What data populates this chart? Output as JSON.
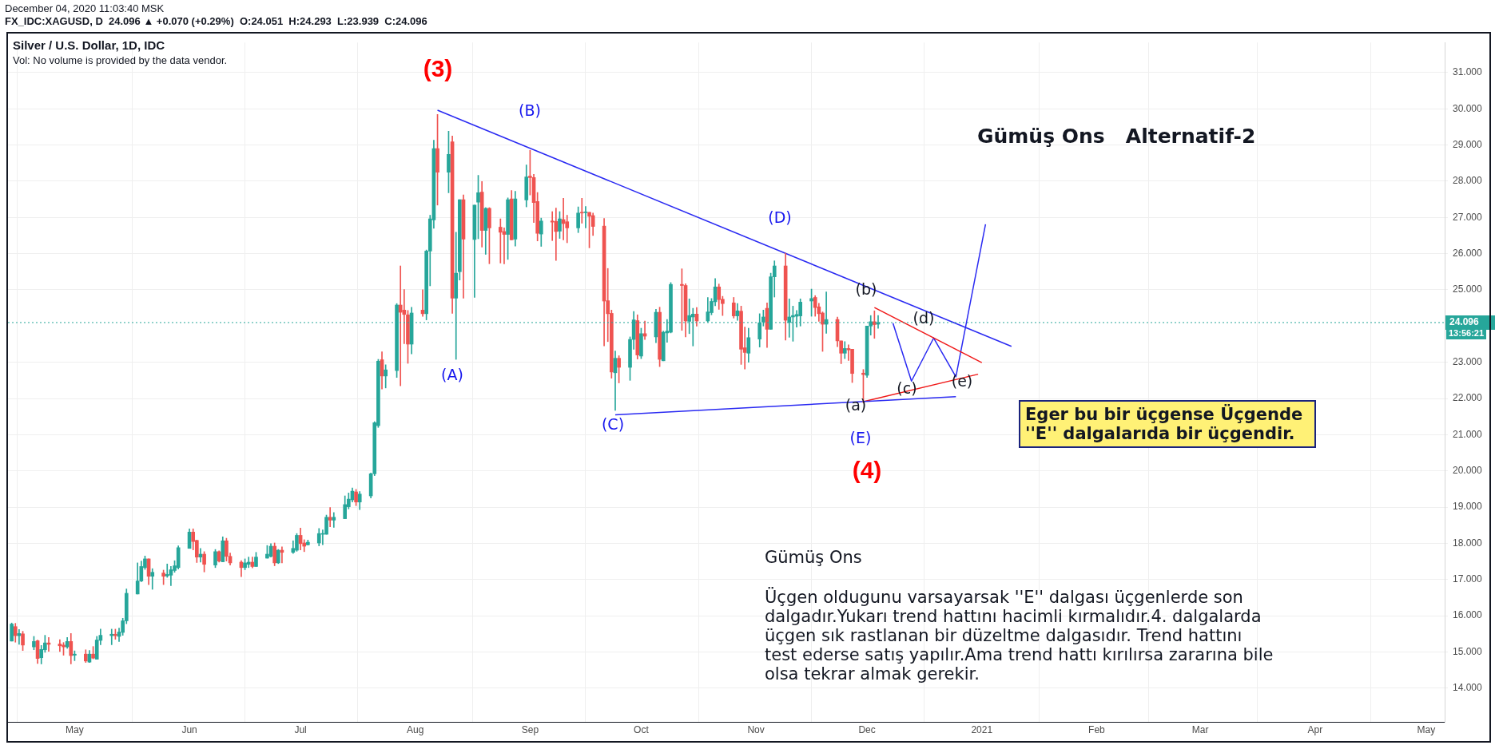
{
  "chart_data": {
    "type": "candlestick",
    "title": "Silver / U.S. Dollar, 1D, IDC",
    "subtitle": "Vol: No volume is provided by the data vendor.",
    "colors": [
      "#26a69a",
      "#ef5350",
      "#26a69a",
      "#ef5350",
      "#26a69a",
      "#ef5350",
      "#26a69a",
      "#26a69a",
      "#ef5350",
      "#ef5350",
      "#ef5350",
      "#26a69a",
      "#ef5350",
      "#26a69a",
      "#ef5350",
      "#26a69a",
      "#ef5350",
      "#26a69a",
      "#26a69a",
      "#26a69a",
      "#ef5350",
      "#26a69a",
      "#26a69a",
      "#26a69a",
      "#26a69a",
      "#26a69a",
      "#26a69a",
      "#ef5350",
      "#26a69a",
      "#ef5350",
      "#26a69a",
      "#26a69a",
      "#26a69a",
      "#26a69a",
      "#26a69a",
      "#ef5350",
      "#ef5350",
      "#26a69a",
      "#ef5350",
      "#26a69a",
      "#ef5350",
      "#26a69a",
      "#ef5350",
      "#ef5350",
      "#ef5350",
      "#26a69a",
      "#26a69a",
      "#ef5350",
      "#26a69a",
      "#26a69a",
      "#26a69a",
      "#ef5350",
      "#26a69a",
      "#ef5350",
      "#26a69a",
      "#26a69a",
      "#ef5350",
      "#ef5350",
      "#26a69a",
      "#26a69a",
      "#26a69a",
      "#26a69a",
      "#ef5350",
      "#26a69a",
      "#26a69a",
      "#26a69a",
      "#26a69a",
      "#ef5350",
      "#26a69a",
      "#26a69a",
      "#26a69a",
      "#26a69a",
      "#ef5350",
      "#26a69a",
      "#26a69a",
      "#ef5350",
      "#ef5350",
      "#ef5350",
      "#26a69a",
      "#ef5350",
      "#26a69a",
      "#26a69a",
      "#26a69a",
      "#ef5350",
      "#26a69a",
      "#ef5350",
      "#26a69a",
      "#26a69a",
      "#ef5350",
      "#26a69a",
      "#26a69a",
      "#ef5350",
      "#26a69a",
      "#ef5350",
      "#ef5350",
      "#ef5350",
      "#26a69a",
      "#ef5350",
      "#26a69a",
      "#26a69a",
      "#ef5350",
      "#ef5350",
      "#ef5350",
      "#26a69a",
      "#ef5350",
      "#ef5350",
      "#26a69a",
      "#ef5350",
      "#ef5350",
      "#26a69a",
      "#ef5350",
      "#26a69a",
      "#ef5350",
      "#ef5350",
      "#ef5350",
      "#ef5350",
      "#ef5350",
      "#26a69a",
      "#ef5350",
      "#26a69a",
      "#26a69a",
      "#ef5350",
      "#26a69a",
      "#ef5350",
      "#26a69a",
      "#ef5350",
      "#26a69a",
      "#26a69a",
      "#26a69a",
      "#ef5350",
      "#ef5350",
      "#26a69a",
      "#26a69a",
      "#ef5350",
      "#26a69a",
      "#26a69a",
      "#26a69a",
      "#ef5350",
      "#ef5350",
      "#ef5350",
      "#26a69a",
      "#ef5350",
      "#ef5350",
      "#26a69a",
      "#26a69a",
      "#26a69a",
      "#ef5350",
      "#26a69a",
      "#26a69a",
      "#ef5350",
      "#26a69a",
      "#26a69a",
      "#26a69a",
      "#26a69a",
      "#26a69a",
      "#ef5350",
      "#ef5350",
      "#ef5350",
      "#26a69a",
      "#ef5350",
      "#ef5350",
      "#26a69a",
      "#ef5350",
      "#ef5350",
      "#ef5350",
      "#26a69a",
      "#26a69a",
      "#ef5350",
      "#26a69a"
    ],
    "x": [
      "2020-04-14",
      "2020-04-15",
      "2020-04-16",
      "2020-04-17",
      "2020-04-20",
      "2020-04-21",
      "2020-04-22",
      "2020-04-23",
      "2020-04-24",
      "2020-04-27",
      "2020-04-28",
      "2020-04-29",
      "2020-04-30",
      "2020-05-01",
      "2020-05-04",
      "2020-05-05",
      "2020-05-06",
      "2020-05-07",
      "2020-05-08",
      "2020-05-11",
      "2020-05-12",
      "2020-05-13",
      "2020-05-14",
      "2020-05-15",
      "2020-05-18",
      "2020-05-19",
      "2020-05-20",
      "2020-05-21",
      "2020-05-22",
      "2020-05-25",
      "2020-05-26",
      "2020-05-27",
      "2020-05-28",
      "2020-05-29",
      "2020-06-01",
      "2020-06-02",
      "2020-06-03",
      "2020-06-04",
      "2020-06-05",
      "2020-06-08",
      "2020-06-09",
      "2020-06-10",
      "2020-06-11",
      "2020-06-12",
      "2020-06-15",
      "2020-06-16",
      "2020-06-17",
      "2020-06-18",
      "2020-06-19",
      "2020-06-22",
      "2020-06-23",
      "2020-06-24",
      "2020-06-25",
      "2020-06-26",
      "2020-06-29",
      "2020-06-30",
      "2020-07-01",
      "2020-07-02",
      "2020-07-03",
      "2020-07-06",
      "2020-07-07",
      "2020-07-08",
      "2020-07-09",
      "2020-07-10",
      "2020-07-13",
      "2020-07-14",
      "2020-07-15",
      "2020-07-16",
      "2020-07-17",
      "2020-07-20",
      "2020-07-21",
      "2020-07-22",
      "2020-07-23",
      "2020-07-24",
      "2020-07-27",
      "2020-07-28",
      "2020-07-29",
      "2020-07-30",
      "2020-07-31",
      "2020-08-03",
      "2020-08-04",
      "2020-08-05",
      "2020-08-06",
      "2020-08-07",
      "2020-08-10",
      "2020-08-11",
      "2020-08-12",
      "2020-08-13",
      "2020-08-14",
      "2020-08-17",
      "2020-08-18",
      "2020-08-19",
      "2020-08-20",
      "2020-08-21",
      "2020-08-24",
      "2020-08-25",
      "2020-08-26",
      "2020-08-27",
      "2020-08-28",
      "2020-08-31",
      "2020-09-01",
      "2020-09-02",
      "2020-09-03",
      "2020-09-04",
      "2020-09-07",
      "2020-09-08",
      "2020-09-09",
      "2020-09-10",
      "2020-09-11",
      "2020-09-14",
      "2020-09-15",
      "2020-09-16",
      "2020-09-17",
      "2020-09-18",
      "2020-09-21",
      "2020-09-22",
      "2020-09-23",
      "2020-09-24",
      "2020-09-25",
      "2020-09-28",
      "2020-09-29",
      "2020-09-30",
      "2020-10-01",
      "2020-10-02",
      "2020-10-05",
      "2020-10-06",
      "2020-10-07",
      "2020-10-08",
      "2020-10-09",
      "2020-10-12",
      "2020-10-13",
      "2020-10-14",
      "2020-10-15",
      "2020-10-16",
      "2020-10-19",
      "2020-10-20",
      "2020-10-21",
      "2020-10-22",
      "2020-10-23",
      "2020-10-26",
      "2020-10-27",
      "2020-10-28",
      "2020-10-29",
      "2020-10-30",
      "2020-11-02",
      "2020-11-03",
      "2020-11-04",
      "2020-11-05",
      "2020-11-06",
      "2020-11-09",
      "2020-11-10",
      "2020-11-11",
      "2020-11-12",
      "2020-11-13",
      "2020-11-16",
      "2020-11-17",
      "2020-11-18",
      "2020-11-19",
      "2020-11-20",
      "2020-11-23",
      "2020-11-24",
      "2020-11-25",
      "2020-11-26",
      "2020-11-27",
      "2020-11-30",
      "2020-12-01",
      "2020-12-02",
      "2020-12-03",
      "2020-12-04"
    ],
    "ohlc": [
      [
        15.3,
        15.8,
        15.3,
        15.77
      ],
      [
        15.7,
        15.79,
        15.27,
        15.45
      ],
      [
        15.45,
        15.62,
        15.21,
        15.51
      ],
      [
        15.5,
        15.57,
        15.04,
        15.19
      ],
      [
        15.14,
        15.43,
        15.06,
        15.29
      ],
      [
        15.31,
        15.33,
        14.68,
        14.82
      ],
      [
        14.84,
        15.18,
        14.67,
        15.07
      ],
      [
        15.06,
        15.46,
        14.99,
        15.25
      ],
      [
        15.25,
        15.4,
        15.02,
        15.21
      ],
      [
        15.22,
        15.34,
        15.01,
        15.17
      ],
      [
        15.19,
        15.26,
        14.91,
        15.14
      ],
      [
        15.14,
        15.4,
        15.1,
        15.29
      ],
      [
        15.29,
        15.51,
        14.67,
        14.9
      ],
      [
        14.91,
        15.03,
        14.76,
        14.94
      ],
      [
        14.94,
        15.06,
        14.71,
        14.75
      ],
      [
        14.72,
        15.04,
        14.71,
        14.94
      ],
      [
        14.94,
        15.15,
        14.81,
        14.83
      ],
      [
        14.8,
        15.43,
        14.8,
        15.33
      ],
      [
        15.32,
        15.63,
        15.2,
        15.46
      ],
      [
        15.45,
        15.63,
        15.2,
        15.49
      ],
      [
        15.49,
        15.63,
        15.35,
        15.45
      ],
      [
        15.43,
        15.66,
        15.29,
        15.55
      ],
      [
        15.54,
        15.93,
        15.46,
        15.86
      ],
      [
        15.86,
        16.74,
        15.78,
        16.62
      ],
      [
        16.6,
        17.46,
        16.6,
        16.96
      ],
      [
        16.96,
        17.51,
        16.94,
        17.36
      ],
      [
        17.33,
        17.65,
        17.28,
        17.57
      ],
      [
        17.57,
        17.57,
        16.86,
        17.09
      ],
      [
        17.09,
        17.3,
        16.73,
        17.2
      ],
      [
        17.18,
        17.26,
        16.86,
        17.09
      ],
      [
        17.1,
        17.43,
        17.06,
        17.14
      ],
      [
        17.12,
        17.36,
        16.83,
        17.27
      ],
      [
        17.25,
        17.52,
        17.2,
        17.38
      ],
      [
        17.33,
        17.93,
        17.29,
        17.88
      ],
      [
        17.86,
        18.4,
        17.86,
        18.31
      ],
      [
        18.31,
        18.4,
        17.82,
        18.05
      ],
      [
        18.08,
        18.09,
        17.47,
        17.62
      ],
      [
        17.62,
        17.86,
        17.48,
        17.7
      ],
      [
        17.7,
        17.77,
        17.21,
        17.42
      ],
      [
        17.4,
        17.83,
        17.33,
        17.77
      ],
      [
        17.77,
        17.79,
        17.48,
        17.51
      ],
      [
        17.49,
        18.18,
        17.49,
        18.07
      ],
      [
        18.07,
        18.14,
        17.51,
        17.64
      ],
      [
        17.64,
        17.73,
        17.4,
        17.46
      ],
      [
        17.48,
        17.52,
        17.08,
        17.33
      ],
      [
        17.33,
        17.57,
        17.27,
        17.46
      ],
      [
        17.42,
        17.62,
        17.33,
        17.48
      ],
      [
        17.48,
        17.62,
        17.32,
        17.36
      ],
      [
        17.36,
        17.75,
        17.36,
        17.62
      ],
      [
        17.59,
        17.94,
        17.59,
        17.7
      ],
      [
        17.64,
        17.99,
        17.62,
        17.92
      ],
      [
        17.92,
        18.01,
        17.38,
        17.46
      ],
      [
        17.46,
        17.83,
        17.44,
        17.81
      ],
      [
        17.81,
        17.9,
        17.46,
        17.75
      ],
      [
        17.75,
        18.07,
        17.72,
        17.86
      ],
      [
        17.81,
        18.27,
        17.78,
        18.22
      ],
      [
        18.22,
        18.42,
        17.82,
        17.99
      ],
      [
        18.01,
        18.1,
        17.77,
        17.92
      ],
      [
        17.96,
        18.09,
        17.95,
        18.03
      ],
      [
        18.01,
        18.41,
        17.93,
        18.27
      ],
      [
        18.25,
        18.37,
        17.96,
        18.27
      ],
      [
        18.25,
        18.78,
        18.25,
        18.72
      ],
      [
        18.72,
        18.99,
        18.46,
        18.64
      ],
      [
        18.64,
        18.85,
        18.44,
        18.72
      ],
      [
        18.68,
        19.31,
        18.68,
        19.07
      ],
      [
        19.01,
        19.39,
        18.95,
        19.22
      ],
      [
        19.2,
        19.53,
        19.14,
        19.44
      ],
      [
        19.42,
        19.49,
        19.04,
        19.14
      ],
      [
        19.14,
        19.43,
        18.93,
        19.36
      ],
      [
        19.31,
        19.94,
        19.25,
        19.92
      ],
      [
        19.92,
        21.36,
        19.87,
        21.33
      ],
      [
        21.25,
        23.08,
        21.2,
        23.03
      ],
      [
        23.07,
        23.29,
        22.26,
        22.62
      ],
      [
        22.62,
        22.93,
        22.29,
        22.79
      ],
      [
        22.77,
        24.62,
        22.58,
        24.58
      ],
      [
        24.58,
        25.66,
        22.35,
        24.38
      ],
      [
        24.44,
        25.01,
        23.51,
        24.32
      ],
      [
        24.31,
        24.43,
        22.97,
        23.5
      ],
      [
        23.5,
        24.52,
        23.23,
        24.36
      ],
      [
        24.44,
        25.0,
        24.27,
        24.34
      ],
      [
        24.34,
        26.1,
        24.17,
        26.07
      ],
      [
        26.07,
        27.06,
        25.11,
        26.96
      ],
      [
        26.93,
        29.13,
        26.7,
        28.9
      ],
      [
        28.9,
        29.84,
        27.34,
        28.25
      ],
      [
        28.25,
        29.38,
        27.68,
        28.74
      ],
      [
        29.09,
        29.25,
        24.35,
        24.77
      ],
      [
        24.77,
        26.59,
        23.08,
        25.46
      ],
      [
        25.5,
        27.49,
        25.27,
        27.49
      ],
      [
        27.49,
        27.62,
        24.77,
        26.4
      ],
      [
        26.39,
        27.34,
        24.79,
        27.34
      ],
      [
        27.42,
        28.16,
        26.41,
        27.68
      ],
      [
        27.7,
        27.99,
        26.18,
        26.64
      ],
      [
        26.64,
        27.27,
        25.98,
        27.25
      ],
      [
        27.25,
        27.27,
        25.72,
        26.71
      ],
      [
        26.73,
        26.96,
        25.74,
        26.59
      ],
      [
        26.61,
        26.71,
        25.72,
        26.53
      ],
      [
        26.53,
        27.54,
        25.84,
        27.49
      ],
      [
        27.51,
        27.74,
        26.38,
        26.38
      ],
      [
        26.4,
        27.72,
        26.21,
        27.51
      ],
      [
        27.48,
        28.45,
        27.29,
        28.12
      ],
      [
        28.14,
        28.85,
        27.62,
        28.1
      ],
      [
        28.1,
        28.19,
        26.86,
        27.41
      ],
      [
        27.44,
        27.69,
        26.35,
        26.56
      ],
      [
        26.54,
        26.98,
        26.2,
        26.9
      ],
      [
        26.9,
        27.16,
        26.36,
        26.87
      ],
      [
        26.89,
        27.26,
        25.81,
        26.61
      ],
      [
        26.62,
        27.16,
        26.42,
        26.96
      ],
      [
        26.94,
        27.53,
        26.38,
        26.83
      ],
      [
        26.88,
        27.06,
        26.3,
        26.71
      ],
      [
        26.71,
        27.29,
        26.58,
        27.12
      ],
      [
        27.14,
        27.53,
        26.84,
        27.12
      ],
      [
        27.13,
        27.3,
        26.71,
        27.14
      ],
      [
        27.14,
        27.14,
        26.16,
        27.03
      ],
      [
        27.05,
        27.12,
        26.5,
        26.75
      ],
      [
        26.76,
        26.97,
        23.45,
        24.69
      ],
      [
        24.7,
        25.59,
        23.57,
        24.34
      ],
      [
        24.35,
        24.44,
        22.56,
        22.73
      ],
      [
        22.71,
        23.31,
        21.67,
        23.11
      ],
      [
        23.11,
        23.18,
        22.43,
        22.86
      ],
      [
        22.86,
        23.7,
        22.5,
        23.63
      ],
      [
        23.63,
        24.4,
        23.36,
        24.17
      ],
      [
        24.15,
        24.31,
        23.09,
        23.2
      ],
      [
        23.17,
        23.94,
        23.1,
        23.79
      ],
      [
        23.79,
        24.14,
        23.63,
        23.72
      ],
      [
        23.7,
        24.46,
        23.54,
        24.38
      ],
      [
        24.38,
        24.52,
        22.88,
        23.08
      ],
      [
        23.04,
        23.86,
        23.04,
        23.83
      ],
      [
        23.81,
        24.18,
        23.55,
        23.86
      ],
      [
        23.83,
        25.2,
        23.81,
        25.15
      ],
      [
        25.15,
        25.58,
        23.88,
        25.12
      ],
      [
        25.12,
        25.17,
        23.7,
        24.14
      ],
      [
        24.13,
        24.75,
        23.79,
        24.29
      ],
      [
        24.25,
        24.49,
        23.45,
        24.33
      ],
      [
        24.33,
        24.51,
        24.0,
        24.14
      ],
      [
        24.14,
        24.79,
        24.11,
        24.39
      ],
      [
        24.37,
        24.76,
        24.31,
        24.68
      ],
      [
        24.67,
        25.31,
        24.56,
        25.08
      ],
      [
        25.08,
        25.16,
        24.46,
        24.73
      ],
      [
        24.74,
        24.82,
        24.29,
        24.62
      ],
      [
        24.64,
        24.79,
        24.22,
        24.28
      ],
      [
        24.28,
        24.62,
        24.16,
        24.42
      ],
      [
        24.41,
        24.55,
        22.94,
        23.36
      ],
      [
        23.4,
        23.97,
        22.81,
        23.27
      ],
      [
        23.25,
        23.94,
        23.0,
        23.68
      ],
      [
        23.64,
        24.34,
        23.42,
        24.09
      ],
      [
        24.11,
        24.44,
        24.0,
        24.25
      ],
      [
        24.49,
        24.64,
        23.41,
        23.91
      ],
      [
        23.91,
        25.46,
        23.91,
        25.36
      ],
      [
        25.36,
        25.8,
        24.8,
        25.66
      ],
      [
        25.66,
        26.01,
        23.61,
        24.16
      ],
      [
        24.1,
        24.75,
        23.69,
        24.25
      ],
      [
        24.25,
        24.55,
        23.58,
        24.29
      ],
      [
        24.27,
        24.43,
        23.97,
        24.32
      ],
      [
        24.28,
        24.75,
        24.0,
        24.66
      ],
      [
        24.69,
        25.02,
        24.27,
        24.76
      ],
      [
        24.79,
        24.84,
        24.27,
        24.51
      ],
      [
        24.53,
        24.63,
        24.13,
        24.34
      ],
      [
        24.36,
        24.39,
        23.3,
        24.05
      ],
      [
        24.05,
        24.94,
        23.8,
        24.18
      ],
      [
        24.18,
        24.25,
        23.43,
        23.59
      ],
      [
        23.59,
        23.59,
        22.96,
        23.25
      ],
      [
        23.25,
        23.57,
        23.1,
        23.38
      ],
      [
        23.38,
        23.48,
        23.05,
        23.34
      ],
      [
        23.36,
        23.36,
        22.44,
        22.69
      ],
      [
        22.7,
        22.8,
        21.88,
        22.66
      ],
      [
        22.64,
        24.0,
        22.58,
        24.0
      ],
      [
        24.0,
        24.29,
        23.75,
        24.12
      ],
      [
        24.12,
        24.42,
        23.66,
        24.04
      ],
      [
        24.051,
        24.293,
        23.939,
        24.096
      ]
    ],
    "series": [
      {
        "type": "line",
        "color": "#2a2af2",
        "x": [
          "2020-08-07",
          "2021-01-09"
        ],
        "values": [
          29.96,
          23.44
        ]
      },
      {
        "type": "line",
        "color": "#2a2af2",
        "x": [
          "2020-09-24",
          "2020-12-25"
        ],
        "values": [
          21.55,
          22.05
        ]
      },
      {
        "type": "line",
        "color": "#f01818",
        "x": [
          "2020-12-03",
          "2021-01-01"
        ],
        "values": [
          24.51,
          22.99
        ]
      },
      {
        "type": "line",
        "color": "#f01818",
        "x": [
          "2020-11-30",
          "2020-12-31"
        ],
        "values": [
          21.91,
          22.67
        ]
      },
      {
        "type": "line",
        "color": "#2a2af2",
        "x": [
          "2020-12-08",
          "2020-12-13",
          "2020-12-19",
          "2020-12-25",
          "2021-01-02"
        ],
        "values": [
          24.08,
          22.48,
          23.67,
          22.6,
          26.81
        ]
      }
    ],
    "ref_lines": [
      {
        "axis": "y",
        "value": 24.096,
        "label": "24.096",
        "color": "#26a69a",
        "line_style": "dotted"
      }
    ],
    "xlim": [
      "2020-04-13",
      "2021-05-06"
    ],
    "xticks": [
      {
        "value": "2020-05-01",
        "label": "May"
      },
      {
        "value": "2020-06-01",
        "label": "Jun"
      },
      {
        "value": "2020-07-01",
        "label": "Jul"
      },
      {
        "value": "2020-08-01",
        "label": "Aug"
      },
      {
        "value": "2020-09-01",
        "label": "Sep"
      },
      {
        "value": "2020-10-01",
        "label": "Oct"
      },
      {
        "value": "2020-11-01",
        "label": "Nov"
      },
      {
        "value": "2020-12-01",
        "label": "Dec"
      },
      {
        "value": "2021-01-01",
        "label": "2021"
      },
      {
        "value": "2021-02-01",
        "label": "Feb"
      },
      {
        "value": "2021-03-01",
        "label": "Mar"
      },
      {
        "value": "2021-04-01",
        "label": "Apr"
      },
      {
        "value": "2021-05-01",
        "label": "May"
      }
    ],
    "ylim": [
      13.07,
      31.83
    ],
    "yticks": [
      {
        "value": 14,
        "label": "14.000"
      },
      {
        "value": 15,
        "label": "15.000"
      },
      {
        "value": 16,
        "label": "16.000"
      },
      {
        "value": 17,
        "label": "17.000"
      },
      {
        "value": 18,
        "label": "18.000"
      },
      {
        "value": 19,
        "label": "19.000"
      },
      {
        "value": 20,
        "label": "20.000"
      },
      {
        "value": 21,
        "label": "21.000"
      },
      {
        "value": 22,
        "label": "22.000"
      },
      {
        "value": 23,
        "label": "23.000"
      },
      {
        "value": 25,
        "label": "25.000"
      },
      {
        "value": 26,
        "label": "26.000"
      },
      {
        "value": 27,
        "label": "27.000"
      },
      {
        "value": 28,
        "label": "28.000"
      },
      {
        "value": 29,
        "label": "29.000"
      },
      {
        "value": 30,
        "label": "30.000"
      },
      {
        "value": 31,
        "label": "31.000"
      }
    ],
    "grid": true,
    "annotations": [
      "December 04, 2020 11:03:40 MSK",
      "FX_IDC:XAGUSD, D  24.096 ▲ +0.070 (+0.29%)  O:24.051  H:24.293  L:23.939  C:24.096",
      "13:56:21",
      "Gümüş Ons   Alternatif-2",
      "Eger bu bir üçgense Üçgende ''E'' dalgalarıda bir üçgendir.",
      "Gümüş Ons",
      "Üçgen oldugunu varsayarsak  ''E'' dalgası üçgenlerde son dalgadır.Yukarı trend hattını hacimli kırmalıdır.4. dalgalarda üçgen sık rastlanan bir düzeltme dalgasıdır. Trend hattını test ederse satış yapılır.Ama trend hattı kırılırsa zararına bile olsa tekrar almak gerekir.",
      "(3)",
      "(B)",
      "(A)",
      "(C)",
      "(D)",
      "(E)",
      "(4)",
      "(a)",
      "(b)",
      "(c)",
      "(d)",
      "(e)"
    ]
  }
}
